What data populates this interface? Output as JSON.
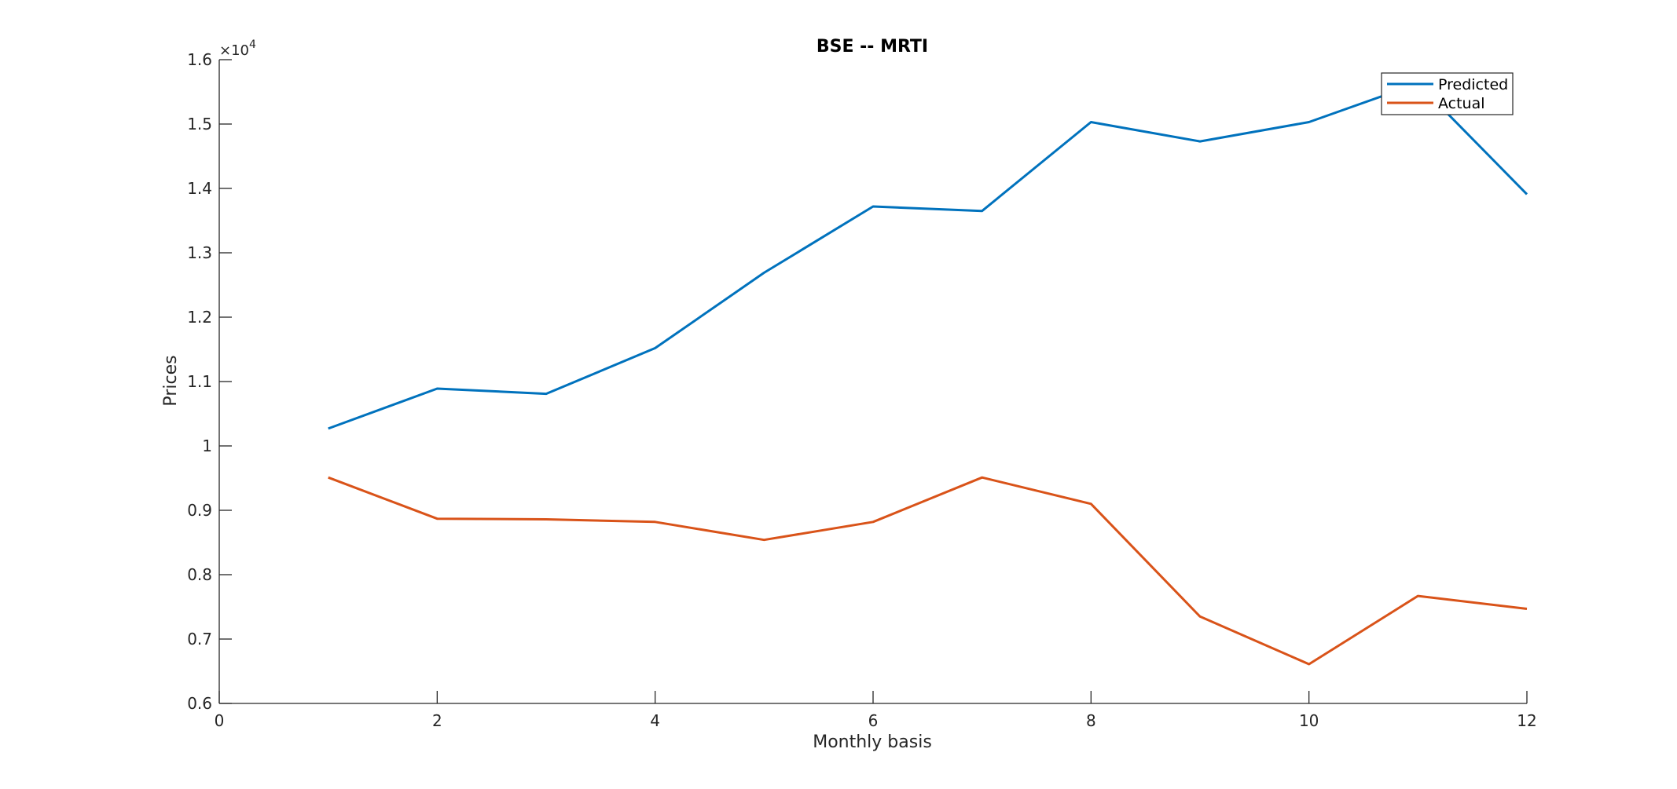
{
  "chart_data": {
    "type": "line",
    "title": "BSE -- MRTI",
    "xlabel": "Monthly basis",
    "ylabel": "Prices",
    "xlim": [
      0,
      12
    ],
    "ylim": [
      6000,
      16000
    ],
    "x_ticks": [
      0,
      2,
      4,
      6,
      8,
      10,
      12
    ],
    "x_tick_labels": [
      "0",
      "2",
      "4",
      "6",
      "8",
      "10",
      "12"
    ],
    "y_ticks": [
      6000,
      7000,
      8000,
      9000,
      10000,
      11000,
      12000,
      13000,
      14000,
      15000,
      16000
    ],
    "y_tick_labels": [
      "0.6",
      "0.7",
      "0.8",
      "0.9",
      "1",
      "1.1",
      "1.2",
      "1.3",
      "1.4",
      "1.5",
      "1.6"
    ],
    "y_exponent_label": {
      "base": "×10",
      "exponent": "4"
    },
    "grid": false,
    "legend_position": "top-right",
    "x": [
      1,
      2,
      3,
      4,
      5,
      6,
      7,
      8,
      9,
      10,
      11,
      12
    ],
    "series": [
      {
        "name": "Predicted",
        "color": "#0072BD",
        "values": [
          10270,
          10890,
          10810,
          11520,
          12690,
          13720,
          13650,
          15030,
          14730,
          15030,
          15630,
          13910
        ]
      },
      {
        "name": "Actual",
        "color": "#D95319",
        "values": [
          9510,
          8870,
          8860,
          8820,
          8540,
          8820,
          9510,
          9100,
          7350,
          6610,
          7670,
          7470
        ]
      }
    ]
  }
}
